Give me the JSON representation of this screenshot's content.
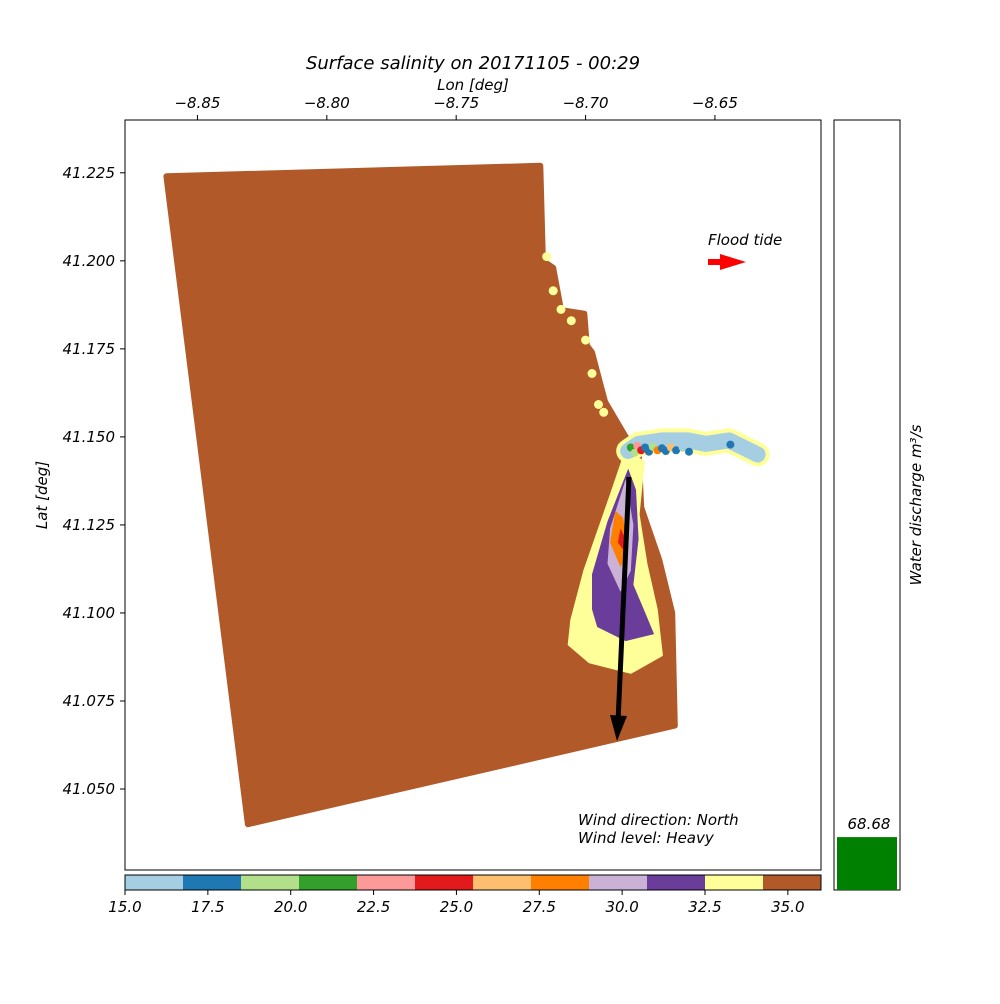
{
  "chart_data": {
    "type": "heatmap",
    "title": "Surface salinity on 20171105 - 00:29",
    "xlabel": "Lon [deg]",
    "ylabel": "Lat [deg]",
    "xlim": [
      -8.878,
      -8.609
    ],
    "ylim": [
      41.027,
      41.24
    ],
    "x_ticks": [
      -8.85,
      -8.8,
      -8.75,
      -8.7,
      -8.65
    ],
    "x_tick_labels": [
      "−8.85",
      "−8.80",
      "−8.75",
      "−8.70",
      "−8.65"
    ],
    "y_ticks": [
      41.05,
      41.075,
      41.1,
      41.125,
      41.15,
      41.175,
      41.2,
      41.225
    ],
    "y_tick_labels": [
      "41.050",
      "41.075",
      "41.100",
      "41.125",
      "41.150",
      "41.175",
      "41.200",
      "41.225"
    ],
    "ocean_polygon": [
      [
        -8.862,
        41.224
      ],
      [
        -8.7175,
        41.227
      ],
      [
        -8.7165,
        41.2
      ],
      [
        -8.7125,
        41.198
      ],
      [
        -8.7095,
        41.186
      ],
      [
        -8.7005,
        41.185
      ],
      [
        -8.6995,
        41.176
      ],
      [
        -8.6975,
        41.174
      ],
      [
        -8.6925,
        41.16
      ],
      [
        -8.6845,
        41.15
      ],
      [
        -8.6795,
        41.146
      ],
      [
        -8.6785,
        41.13
      ],
      [
        -8.6715,
        41.115
      ],
      [
        -8.6665,
        41.1
      ],
      [
        -8.6655,
        41.068
      ],
      [
        -8.8305,
        41.04
      ],
      [
        -8.862,
        41.224
      ]
    ],
    "plume_yellow": [
      [
        -8.6845,
        41.146
      ],
      [
        -8.6905,
        41.133
      ],
      [
        -8.7005,
        41.112
      ],
      [
        -8.7055,
        41.098
      ],
      [
        -8.7065,
        41.091
      ],
      [
        -8.6985,
        41.086
      ],
      [
        -8.6825,
        41.083
      ],
      [
        -8.6705,
        41.088
      ],
      [
        -8.6725,
        41.101
      ],
      [
        -8.6765,
        41.114
      ],
      [
        -8.6795,
        41.128
      ],
      [
        -8.6775,
        41.143
      ],
      [
        -8.6845,
        41.146
      ]
    ],
    "plume_purple": [
      [
        -8.6835,
        41.141
      ],
      [
        -8.6915,
        41.126
      ],
      [
        -8.6975,
        41.111
      ],
      [
        -8.6975,
        41.101
      ],
      [
        -8.6955,
        41.096
      ],
      [
        -8.6845,
        41.092
      ],
      [
        -8.6735,
        41.094
      ],
      [
        -8.6775,
        41.101
      ],
      [
        -8.6815,
        41.108
      ],
      [
        -8.6795,
        41.121
      ],
      [
        -8.6805,
        41.135
      ],
      [
        -8.6835,
        41.141
      ]
    ],
    "plume_lilac": [
      [
        -8.6845,
        41.138
      ],
      [
        -8.6905,
        41.124
      ],
      [
        -8.6915,
        41.114
      ],
      [
        -8.6865,
        41.106
      ],
      [
        -8.6825,
        41.112
      ],
      [
        -8.6815,
        41.125
      ],
      [
        -8.6845,
        41.138
      ]
    ],
    "plume_orange": [
      [
        -8.6885,
        41.129
      ],
      [
        -8.6905,
        41.12
      ],
      [
        -8.6865,
        41.113
      ],
      [
        -8.6835,
        41.118
      ],
      [
        -8.6855,
        41.127
      ],
      [
        -8.6885,
        41.129
      ]
    ],
    "plume_red": [
      [
        -8.6865,
        41.124
      ],
      [
        -8.6875,
        41.12
      ],
      [
        -8.6855,
        41.118
      ],
      [
        -8.6845,
        41.121
      ],
      [
        -8.6865,
        41.124
      ]
    ],
    "river": [
      [
        -8.6835,
        41.146
      ],
      [
        -8.6795,
        41.148
      ],
      [
        -8.6705,
        41.149
      ],
      [
        -8.6605,
        41.149
      ],
      [
        -8.6535,
        41.148
      ],
      [
        -8.6445,
        41.149
      ],
      [
        -8.6335,
        41.145
      ]
    ],
    "annotation_flood": "Flood tide",
    "annotation_wind_direction": "Wind direction: North",
    "annotation_wind_level": "Wind level: Heavy",
    "colorbar": {
      "min": 15.0,
      "max": 36.0,
      "bins": 12,
      "colors": [
        "#a6cee3",
        "#1f78b4",
        "#b2df8a",
        "#33a02c",
        "#fb9a99",
        "#e31a1c",
        "#fdbf6f",
        "#ff7f00",
        "#cab2d6",
        "#6a3d9a",
        "#ffff99",
        "#b15928"
      ],
      "ticks": [
        15.0,
        17.5,
        20.0,
        22.5,
        25.0,
        27.5,
        30.0,
        32.5,
        35.0
      ],
      "tick_labels": [
        "15.0",
        "17.5",
        "20.0",
        "22.5",
        "25.0",
        "27.5",
        "30.0",
        "32.5",
        "35.0"
      ]
    },
    "discharge": {
      "label": "Water discharge m³/s",
      "value": 68.68,
      "value_label": "68.68",
      "max": 1000,
      "color": "#008000"
    },
    "wind_arrow_color": "#000000",
    "tide_arrow_color": "#ff0000"
  }
}
